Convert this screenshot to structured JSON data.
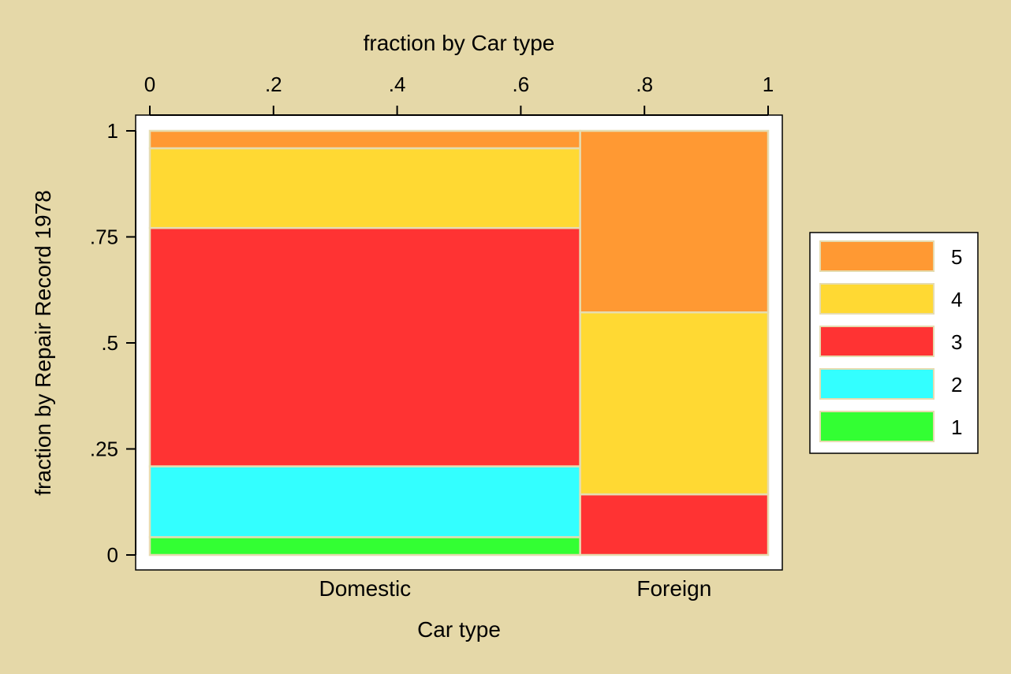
{
  "chart_data": {
    "type": "mosaic",
    "title": "",
    "top_axis": {
      "label": "fraction by Car type",
      "ticks": [
        0,
        0.2,
        0.4,
        0.6,
        0.8,
        1
      ],
      "tick_labels": [
        "0",
        ".2",
        ".4",
        ".6",
        ".8",
        "1"
      ],
      "range": [
        0,
        1
      ]
    },
    "y_axis": {
      "label": "fraction by Repair Record 1978",
      "ticks": [
        0,
        0.25,
        0.5,
        0.75,
        1
      ],
      "tick_labels": [
        "0",
        ".25",
        ".5",
        ".75",
        "1"
      ],
      "range": [
        0,
        1
      ]
    },
    "x_axis": {
      "label": "Car type"
    },
    "categories": [
      {
        "name": "Domestic",
        "width": 0.696,
        "segments": [
          {
            "series": "1",
            "fraction": 0.042
          },
          {
            "series": "2",
            "fraction": 0.167
          },
          {
            "series": "3",
            "fraction": 0.562
          },
          {
            "series": "4",
            "fraction": 0.188
          },
          {
            "series": "5",
            "fraction": 0.041
          }
        ]
      },
      {
        "name": "Foreign",
        "width": 0.304,
        "segments": [
          {
            "series": "1",
            "fraction": 0.0
          },
          {
            "series": "2",
            "fraction": 0.0
          },
          {
            "series": "3",
            "fraction": 0.143
          },
          {
            "series": "4",
            "fraction": 0.429
          },
          {
            "series": "5",
            "fraction": 0.428
          }
        ]
      }
    ],
    "series": [
      {
        "name": "5",
        "color": "#ff9933"
      },
      {
        "name": "4",
        "color": "#ffd933"
      },
      {
        "name": "3",
        "color": "#ff3333"
      },
      {
        "name": "2",
        "color": "#33ffff"
      },
      {
        "name": "1",
        "color": "#33ff33"
      }
    ],
    "legend": {
      "position": "right"
    },
    "grid": false
  }
}
